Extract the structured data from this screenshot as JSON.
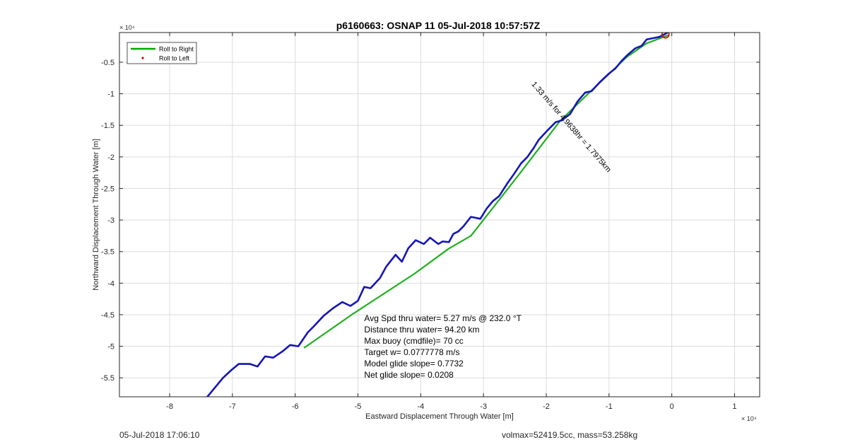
{
  "chart_data": {
    "type": "line",
    "title": "p6160663: OSNAP 11 05-Jul-2018 10:57:57Z",
    "xlabel": "Eastward Displacement Through Water [m]",
    "ylabel": "Northward Displacement Through Water [m]",
    "x_exponent_label": "× 10⁴",
    "y_exponent_label": "× 10⁴",
    "xlim": [
      -8.8,
      1.4
    ],
    "ylim": [
      -5.8,
      -0.03
    ],
    "x_ticks": [
      -8,
      -7,
      -6,
      -5,
      -4,
      -3,
      -2,
      -1,
      0,
      1
    ],
    "x_tick_labels": [
      "-8",
      "-7",
      "-6",
      "-5",
      "-4",
      "-3",
      "-2",
      "-1",
      "0",
      "1"
    ],
    "y_ticks": [
      -0.5,
      -1,
      -1.5,
      -2,
      -2.5,
      -3,
      -3.5,
      -4,
      -4.5,
      -5,
      -5.5
    ],
    "y_tick_labels": [
      "-0.5",
      "-1",
      "-1.5",
      "-2",
      "-2.5",
      "-3",
      "-3.5",
      "-4",
      "-4.5",
      "-5",
      "-5.5"
    ],
    "grid": true,
    "legend_placement": "top-left",
    "legend": [
      {
        "label": "Roll to Right",
        "color": "#00aa00",
        "marker": "line"
      },
      {
        "label": "Roll to Left",
        "color": "#e00000",
        "marker": "dot"
      }
    ],
    "series": [
      {
        "name": "Roll to Right",
        "color": "#1eb01e",
        "x": [
          -0.05,
          -0.4,
          -0.72,
          -1.25,
          -1.78,
          -2.45,
          -3.2,
          -3.55,
          -4.1,
          -5.1,
          -5.85
        ],
        "y": [
          -0.07,
          -0.2,
          -0.42,
          -0.92,
          -1.43,
          -2.3,
          -3.25,
          -3.45,
          -3.85,
          -4.5,
          -5.02
        ]
      },
      {
        "name": "",
        "color": "#1515b5",
        "x": [
          -7.4,
          -7.25,
          -7.15,
          -7.02,
          -6.9,
          -6.72,
          -6.6,
          -6.48,
          -6.35,
          -6.2,
          -6.08,
          -5.95,
          -5.8,
          -5.7,
          -5.55,
          -5.4,
          -5.25,
          -5.12,
          -5.0,
          -4.9,
          -4.8,
          -4.65,
          -4.55,
          -4.4,
          -4.3,
          -4.2,
          -4.08,
          -3.95,
          -3.85,
          -3.72,
          -3.65,
          -3.55,
          -3.48,
          -3.4,
          -3.32,
          -3.2,
          -3.05,
          -2.95,
          -2.85,
          -2.75,
          -2.62,
          -2.52,
          -2.4,
          -2.3,
          -2.2,
          -2.12,
          -1.98,
          -1.85,
          -1.75,
          -1.62,
          -1.5,
          -1.38,
          -1.28,
          -1.15,
          -1.0,
          -0.9,
          -0.8,
          -0.7,
          -0.58,
          -0.48,
          -0.4,
          -0.3,
          -0.2,
          -0.12,
          -0.05
        ],
        "y": [
          -5.8,
          -5.62,
          -5.5,
          -5.38,
          -5.28,
          -5.28,
          -5.32,
          -5.16,
          -5.18,
          -5.08,
          -4.98,
          -5.0,
          -4.78,
          -4.68,
          -4.52,
          -4.4,
          -4.3,
          -4.36,
          -4.28,
          -4.06,
          -4.08,
          -3.92,
          -3.74,
          -3.55,
          -3.66,
          -3.45,
          -3.32,
          -3.38,
          -3.28,
          -3.38,
          -3.34,
          -3.35,
          -3.22,
          -3.18,
          -3.1,
          -2.95,
          -2.98,
          -2.82,
          -2.7,
          -2.62,
          -2.42,
          -2.28,
          -2.1,
          -2.0,
          -1.86,
          -1.73,
          -1.58,
          -1.45,
          -1.42,
          -1.32,
          -1.12,
          -0.98,
          -0.96,
          -0.82,
          -0.68,
          -0.6,
          -0.48,
          -0.38,
          -0.28,
          -0.24,
          -0.14,
          -0.12,
          -0.1,
          -0.06,
          -0.02
        ]
      }
    ],
    "markers": [
      {
        "x": -0.1,
        "y": -0.06,
        "color": "#e00000",
        "shape": "circle"
      }
    ],
    "annotations": [
      {
        "text": "Avg Spd thru water=  5.27 m/s @ 232.0 °T",
        "anchor": "left",
        "x": -4.9,
        "y": -4.6
      },
      {
        "text": "Distance thru water= 94.20 km",
        "anchor": "left",
        "x": -4.9,
        "y": -4.78
      },
      {
        "text": "Max buoy (cmdfile)= 70 cc",
        "anchor": "left",
        "x": -4.9,
        "y": -4.96
      },
      {
        "text": "Target w= 0.0777778 m/s",
        "anchor": "left",
        "x": -4.9,
        "y": -5.14
      },
      {
        "text": "Model glide slope= 0.7732",
        "anchor": "left",
        "x": -4.9,
        "y": -5.32
      },
      {
        "text": "Net glide slope= 0.0208",
        "anchor": "left",
        "x": -4.9,
        "y": -5.5
      },
      {
        "text": "1.33 m/s for 4.9638hr = 1.7975km",
        "anchor": "rotated",
        "x": -1.63,
        "y": -1.55,
        "angle_deg": -49
      }
    ]
  },
  "footer": {
    "timestamp": "05-Jul-2018 17:06:10",
    "vehicle": "volmax=52419.5cc, mass=53.258kg"
  }
}
